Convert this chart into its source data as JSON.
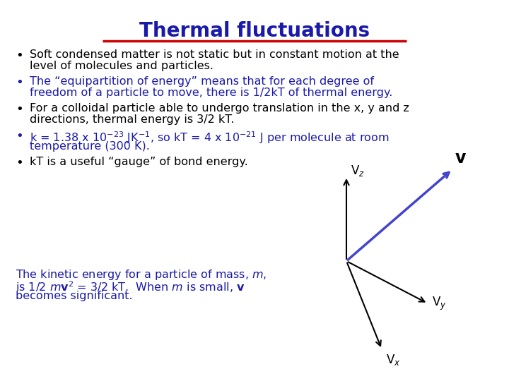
{
  "title": "Thermal fluctuations",
  "title_color": "#1a1aaa",
  "title_underline_color": "#cc0000",
  "background_color": "#ffffff",
  "bullet_color_black": "#000000",
  "bullet_color_blue": "#1a1aaa",
  "bullet1": "Soft condensed matter is not static but in constant motion at the\n   level of molecules and particles.",
  "bullet2": "The “equipartition of energy” means that for each degree of\n   freedom of a particle to move, there is 1/2kT of thermal energy.",
  "bullet3": "For a colloidal particle able to undergo translation in the x, y and z\n   directions, thermal energy is 3/2 kT.",
  "bullet5": "kT is a useful “gauge” of bond energy.",
  "vector_color": "#4444cc",
  "axis_color": "#000000",
  "label_color": "#000000",
  "vbold_color": "#000000",
  "fs_body": 11.5,
  "fs_bullet": 13,
  "fs_title": 20,
  "fs_axis_label": 12,
  "fs_vbold": 17
}
